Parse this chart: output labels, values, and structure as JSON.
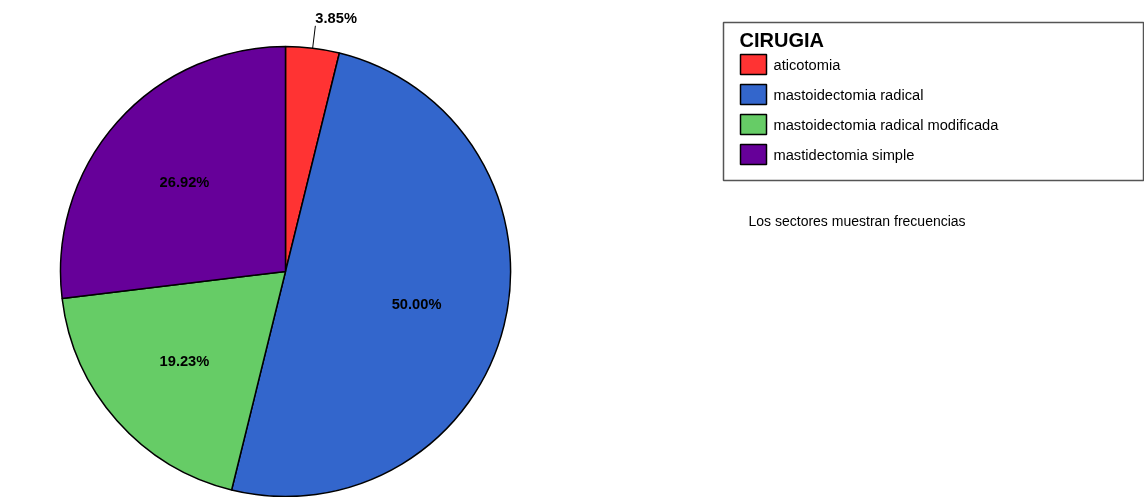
{
  "chart_data": {
    "type": "pie",
    "legend_title": "CIRUGIA",
    "categories": [
      "aticotomia",
      "mastoidectomia radical",
      "mastoidectomia radical modificada",
      "mastidectomia simple"
    ],
    "values": [
      3.85,
      50.0,
      19.23,
      26.92
    ],
    "colors": [
      "#ff3333",
      "#3366cc",
      "#66cc66",
      "#660099"
    ],
    "value_labels": [
      "3.85%",
      "50.00%",
      "19.23%",
      "26.92%"
    ],
    "legend": "top right",
    "annotations": [
      "Los sectores muestran frecuencias"
    ]
  }
}
